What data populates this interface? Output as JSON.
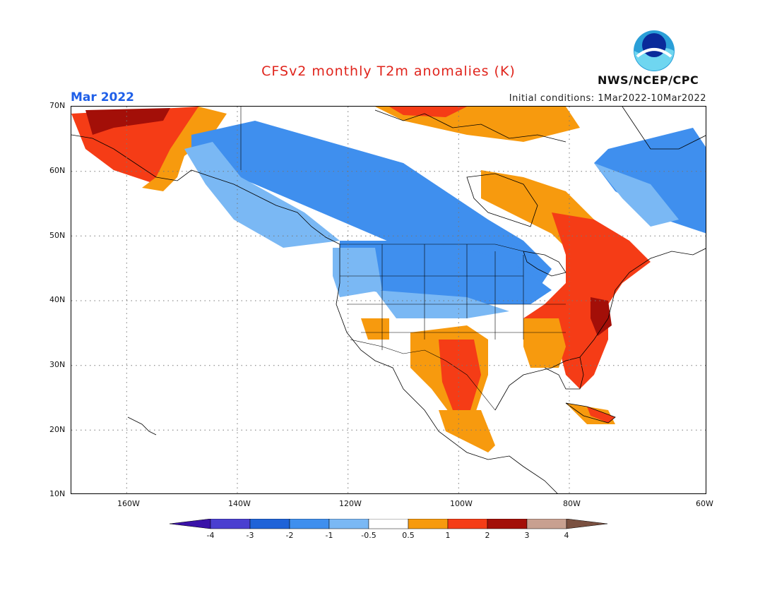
{
  "title": "CFSv2 monthly T2m anomalies (K)",
  "subtitle_left": "Mar 2022",
  "subtitle_right": "Initial conditions: 1Mar2022-10Mar2022",
  "agency": "NWS/NCEP/CPC",
  "logo_text": "NOAA",
  "map": {
    "projection": "lat-lon",
    "lon_range": [
      -175,
      -60
    ],
    "lat_range": [
      10,
      70
    ],
    "lat_labels": [
      "70N",
      "60N",
      "50N",
      "40N",
      "30N",
      "20N",
      "10N"
    ],
    "lon_labels": [
      "160W",
      "140W",
      "120W",
      "100W",
      "80W",
      "60W"
    ],
    "gridlines": true
  },
  "colorbar": {
    "tick_labels": [
      "-4",
      "-3",
      "-2",
      "-1",
      "-0.5",
      "0.5",
      "1",
      "2",
      "3",
      "4"
    ],
    "colors": [
      "#3a12a8",
      "#4a3fd0",
      "#1f63d8",
      "#3f8fee",
      "#7ab8f4",
      "#ffffff",
      "#f79a0e",
      "#f53c16",
      "#a30f08",
      "#c8a090",
      "#7a5040"
    ]
  },
  "regions": [
    {
      "name": "alaska-warm",
      "class": "2"
    },
    {
      "name": "west-canada-cold",
      "class": "-1"
    },
    {
      "name": "northern-plains-cold",
      "class": "-1"
    },
    {
      "name": "eastern-us-warm",
      "class": "2"
    },
    {
      "name": "southeast-warm",
      "class": "1"
    },
    {
      "name": "southwest-warm",
      "class": "1"
    },
    {
      "name": "mexico-warm",
      "class": "0.5"
    },
    {
      "name": "labrador-cold",
      "class": "-1"
    },
    {
      "name": "hudson-warm",
      "class": "1"
    },
    {
      "name": "arctic-warm",
      "class": "1"
    }
  ]
}
